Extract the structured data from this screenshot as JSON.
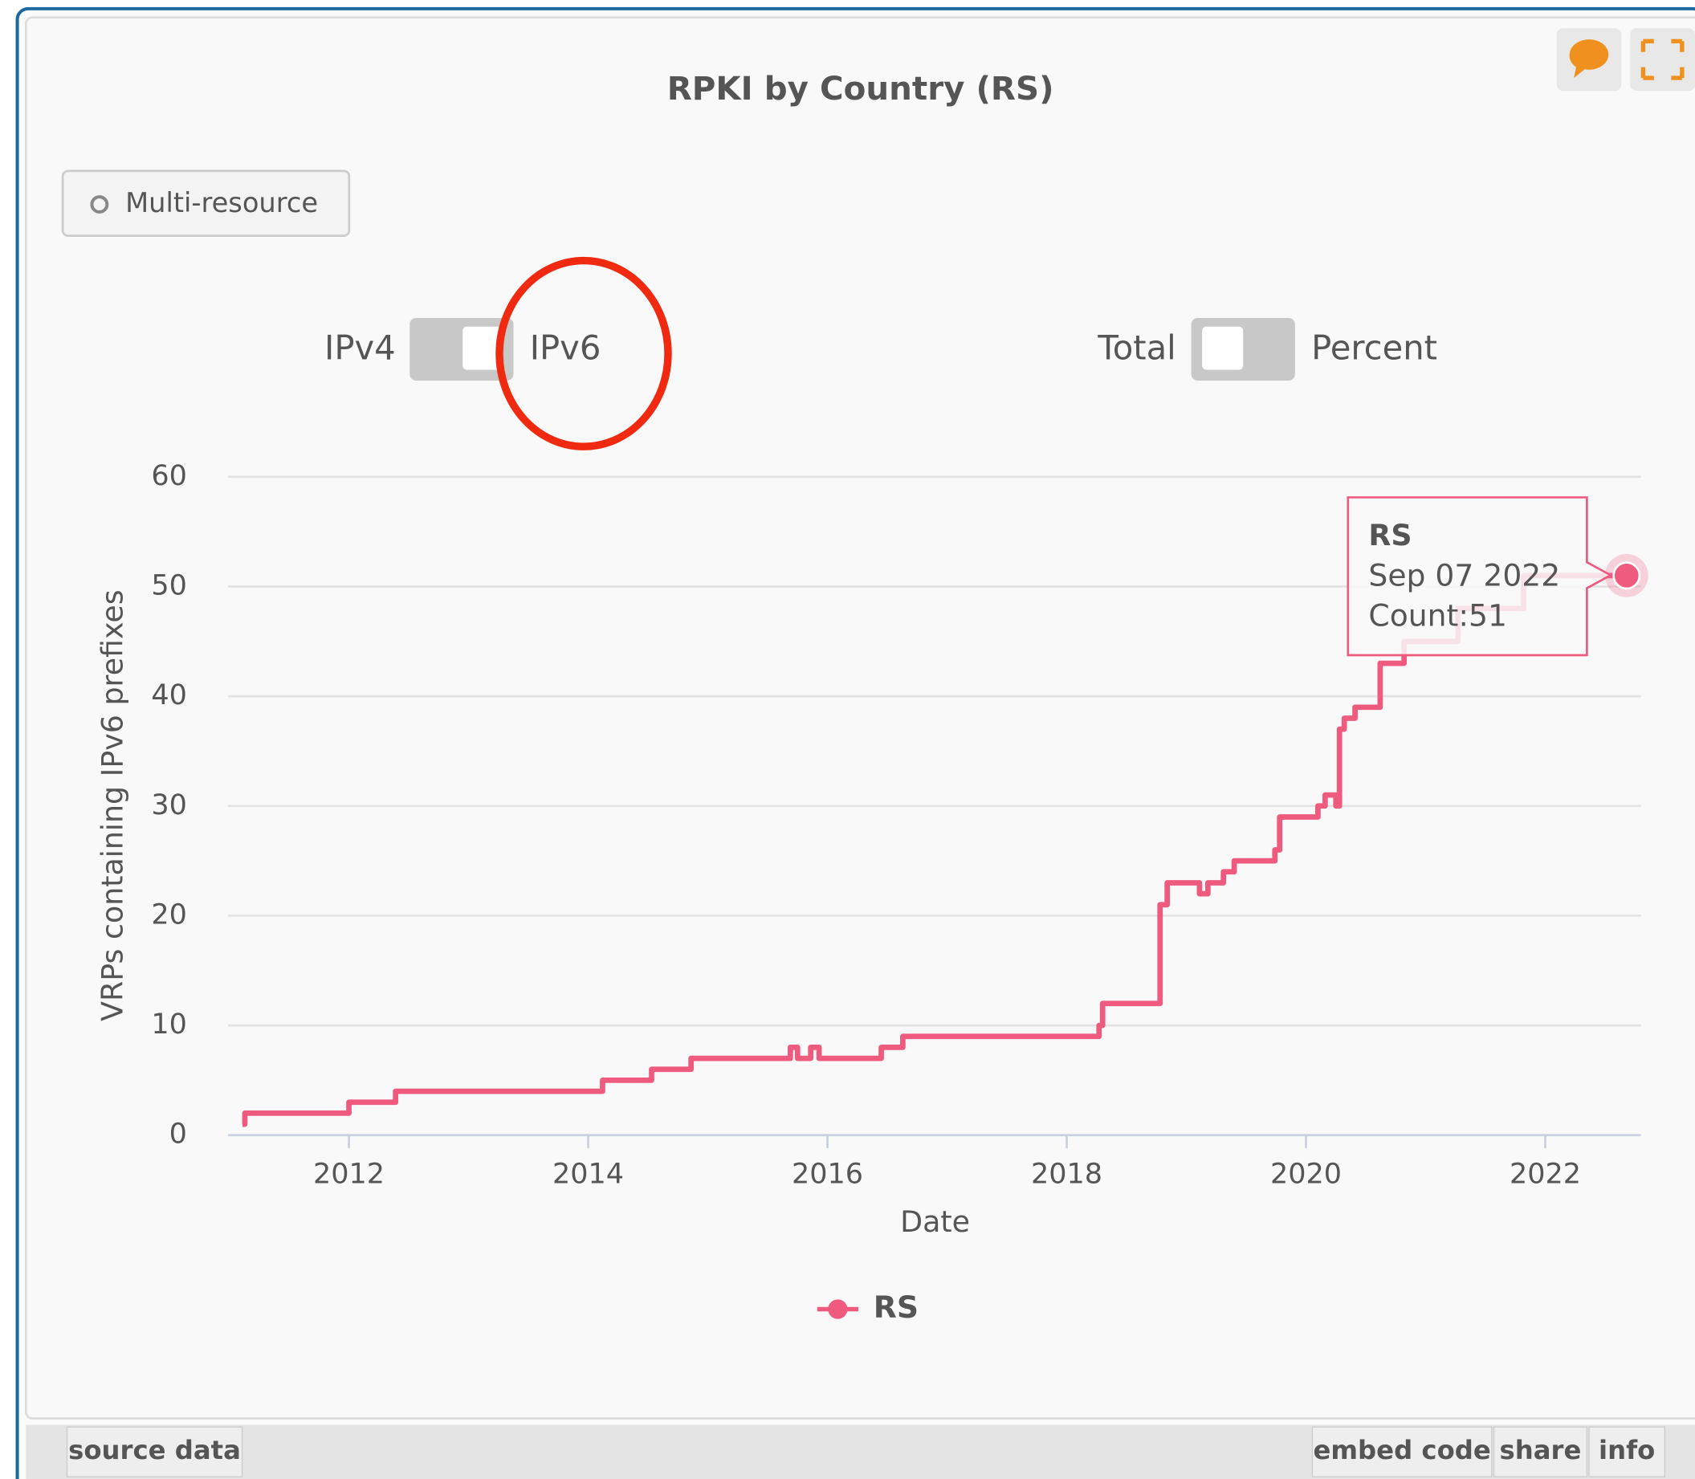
{
  "chart_data": {
    "type": "line",
    "title": "RPKI by Country (RS)",
    "x_label": "Date",
    "y_label": "VRPs containing IPv6 prefixes",
    "x": [
      2011.11,
      2011.13,
      2012.0,
      2012.39,
      2014.12,
      2014.53,
      2014.86,
      2015.69,
      2015.75,
      2015.86,
      2015.93,
      2016.45,
      2016.63,
      2018.27,
      2018.3,
      2018.78,
      2018.84,
      2019.11,
      2019.18,
      2019.31,
      2019.4,
      2019.74,
      2019.78,
      2020.1,
      2020.16,
      2020.25,
      2020.28,
      2020.32,
      2020.41,
      2020.62,
      2020.82,
      2021.27,
      2021.82,
      2022.68
    ],
    "series": [
      {
        "name": "RS",
        "color": "#ef5a7f",
        "values": [
          1,
          2,
          3,
          4,
          5,
          6,
          7,
          8,
          7,
          8,
          7,
          8,
          9,
          10,
          12,
          21,
          23,
          22,
          23,
          24,
          25,
          26,
          29,
          30,
          31,
          30,
          37,
          38,
          39,
          43,
          45,
          48,
          51,
          51
        ]
      }
    ],
    "step": true,
    "xlim": [
      2010.99,
      2022.8
    ],
    "xticks": [
      2012,
      2014,
      2016,
      2018,
      2020,
      2022
    ],
    "ylim": [
      0,
      60
    ],
    "yticks": [
      0,
      10,
      20,
      30,
      40,
      50,
      60
    ],
    "grid": true,
    "tooltip": {
      "title": "RS",
      "date": "Sep 07 2022",
      "text": "Count:51"
    }
  },
  "ui": {
    "button": "Multi-resource",
    "toggle_a": [
      "IPv4",
      "IPv6"
    ],
    "toggle_b": [
      "Total",
      "Percent"
    ],
    "footer_left": "source data",
    "footer_right": [
      "embed code",
      "share",
      "info"
    ]
  }
}
